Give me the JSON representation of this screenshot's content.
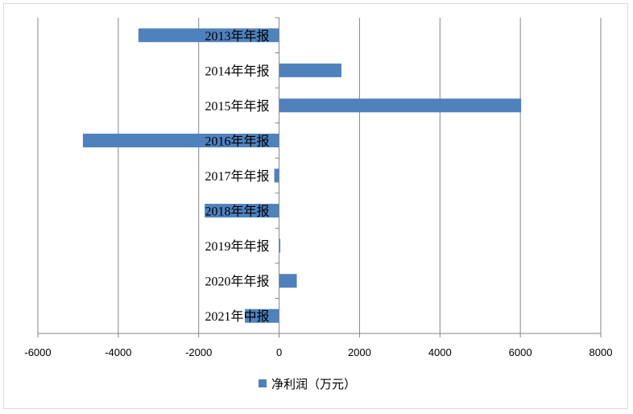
{
  "chart_data": {
    "type": "bar",
    "orientation": "horizontal",
    "categories": [
      "2013年年报",
      "2014年年报",
      "2015年年报",
      "2016年年报",
      "2017年年报",
      "2018年年报",
      "2019年年报",
      "2020年年报",
      "2021年中报"
    ],
    "series": [
      {
        "name": "净利润（万元）",
        "values": [
          -3500,
          1550,
          6020,
          -4880,
          -120,
          -1850,
          15,
          440,
          -850
        ]
      }
    ],
    "xlim": [
      -6000,
      8000
    ],
    "xticks": [
      -6000,
      -4000,
      -2000,
      0,
      2000,
      4000,
      6000,
      8000
    ],
    "xtick_labels": [
      "-6000",
      "-4000",
      "-2000",
      "0",
      "2000",
      "4000",
      "6000",
      "8000"
    ],
    "gridlines": "vertical",
    "legend_position": "bottom",
    "bar_color": "#4f81bd",
    "grid_color": "#868686"
  }
}
